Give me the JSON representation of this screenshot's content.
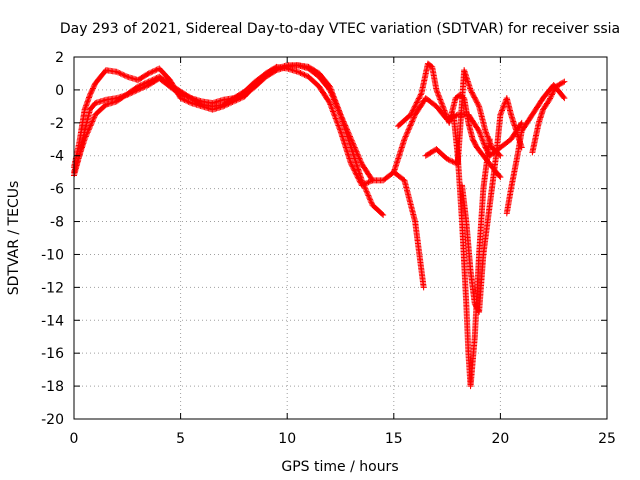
{
  "chart_data": {
    "type": "scatter",
    "title": "Day 293 of 2021, Sidereal Day-to-day VTEC variation (SDTVAR) for receiver ssia",
    "xlabel": "GPS time / hours",
    "ylabel": "SDTVAR / TECUs",
    "xlim": [
      0,
      25
    ],
    "ylim": [
      -20,
      2
    ],
    "xticks": [
      0,
      5,
      10,
      15,
      20,
      25
    ],
    "yticks": [
      2,
      0,
      -2,
      -4,
      -6,
      -8,
      -10,
      -12,
      -14,
      -16,
      -18,
      -20
    ],
    "grid": true,
    "marker": "plus",
    "color": "#ff0000",
    "series": [
      {
        "x": [
          0.0,
          0.25,
          0.5,
          0.75,
          1.0,
          1.5,
          2.0,
          2.5,
          3.0,
          3.5,
          4.0,
          4.5,
          5.0,
          5.5,
          6.0,
          6.5,
          7.0,
          7.5,
          8.0,
          8.5,
          9.0,
          9.5,
          10.0,
          10.5,
          11.0,
          11.5,
          12.0,
          12.5,
          13.0,
          13.5,
          14.0,
          14.5
        ],
        "y": [
          -5.2,
          -4.0,
          -2.5,
          -1.2,
          -0.8,
          -0.6,
          -0.5,
          -0.3,
          0.0,
          0.3,
          0.7,
          0.2,
          -0.3,
          -0.5,
          -0.7,
          -0.8,
          -0.6,
          -0.5,
          -0.3,
          0.2,
          0.8,
          1.2,
          1.4,
          1.5,
          1.4,
          1.0,
          0.2,
          -1.5,
          -3.5,
          -5.5,
          -7.0,
          -7.6
        ]
      },
      {
        "x": [
          0.0,
          0.25,
          0.5,
          0.75,
          1.0,
          1.5,
          2.0,
          2.5,
          3.0,
          3.5,
          4.0,
          4.5,
          5.0,
          5.5,
          6.0,
          6.5,
          7.0,
          7.5,
          8.0,
          8.5,
          9.0,
          9.5,
          10.0,
          10.5,
          11.0,
          11.5,
          12.0,
          12.5,
          13.0,
          13.5,
          14.0
        ],
        "y": [
          -4.7,
          -3.2,
          -1.2,
          -0.3,
          0.4,
          1.2,
          1.1,
          0.8,
          0.6,
          1.0,
          1.3,
          0.6,
          -0.5,
          -0.8,
          -1.0,
          -1.2,
          -1.0,
          -0.7,
          -0.4,
          0.3,
          1.0,
          1.4,
          1.3,
          1.1,
          0.8,
          0.2,
          -0.8,
          -2.5,
          -4.5,
          -5.8,
          -5.5
        ]
      },
      {
        "x": [
          0.0,
          0.5,
          1.0,
          1.5,
          2.0,
          3.0,
          4.0,
          5.0,
          5.5,
          6.0,
          6.5,
          7.0,
          7.5,
          8.0,
          8.5,
          9.0,
          9.5,
          10.0,
          10.5,
          11.0,
          11.5,
          12.0,
          12.5,
          13.0,
          13.5,
          14.0,
          14.5,
          15.0,
          15.5,
          16.0,
          16.4
        ],
        "y": [
          -5.0,
          -3.0,
          -1.5,
          -0.9,
          -0.7,
          0.2,
          0.8,
          -0.1,
          -0.5,
          -0.9,
          -1.0,
          -0.9,
          -0.5,
          -0.1,
          0.5,
          1.0,
          1.3,
          1.5,
          1.5,
          1.3,
          0.8,
          0.0,
          -1.5,
          -3.0,
          -4.5,
          -5.5,
          -5.5,
          -5.0,
          -5.5,
          -8.0,
          -12.0
        ]
      },
      {
        "x": [
          15.0,
          15.5,
          16.0,
          16.5,
          17.0,
          17.5,
          18.0,
          18.5,
          19.0,
          19.3,
          19.5,
          20.0,
          20.5,
          21.0
        ],
        "y": [
          -5.0,
          -3.0,
          -1.5,
          -0.5,
          -1.0,
          -1.8,
          -1.5,
          -1.5,
          -2.5,
          -3.5,
          -4.0,
          -3.5,
          -3.0,
          -2.0
        ]
      },
      {
        "x": [
          15.2,
          15.8,
          16.3,
          16.6,
          16.8,
          17.0,
          17.3,
          17.6,
          17.9,
          18.1,
          18.3,
          18.5,
          18.7,
          18.9,
          19.2,
          19.5,
          19.8,
          20.0
        ],
        "y": [
          -2.2,
          -1.5,
          -0.2,
          1.6,
          1.4,
          0.0,
          -1.0,
          -2.0,
          -0.5,
          -0.3,
          -0.5,
          -2.0,
          -3.0,
          -3.5,
          -4.0,
          -4.5,
          -5.0,
          -5.3
        ]
      },
      {
        "x": [
          16.5,
          17.0,
          17.5,
          18.0,
          18.3,
          18.6,
          19.0,
          19.3,
          19.6,
          20.0
        ],
        "y": [
          -4.0,
          -3.6,
          -4.2,
          -4.5,
          1.2,
          0.0,
          -1.0,
          -2.5,
          -3.5,
          -4.0
        ]
      },
      {
        "x": [
          18.2,
          18.4,
          18.6,
          18.8,
          19.0,
          19.2,
          19.5,
          19.8,
          20.0,
          20.3,
          20.5,
          21.0
        ],
        "y": [
          -5.8,
          -8.0,
          -11.0,
          -13.0,
          -13.5,
          -10.0,
          -7.0,
          -4.0,
          -1.5,
          -0.5,
          -1.5,
          -3.5
        ]
      },
      {
        "x": [
          17.8,
          18.0,
          18.2,
          18.4,
          18.5,
          18.6,
          18.8,
          19.0,
          19.2,
          19.5
        ],
        "y": [
          -1.5,
          -4.0,
          -8.0,
          -13.0,
          -16.0,
          -18.0,
          -15.0,
          -10.0,
          -6.0,
          -3.0
        ]
      },
      {
        "x": [
          20.3,
          20.5,
          20.8,
          21.0,
          21.5,
          22.0,
          22.5,
          23.0
        ],
        "y": [
          -7.5,
          -6.0,
          -4.0,
          -2.5,
          -1.5,
          -0.5,
          0.3,
          -0.5
        ]
      },
      {
        "x": [
          21.5,
          21.8,
          22.0,
          22.3,
          22.6,
          23.0
        ],
        "y": [
          -3.8,
          -2.0,
          -1.2,
          -0.6,
          0.2,
          0.5
        ]
      }
    ]
  }
}
